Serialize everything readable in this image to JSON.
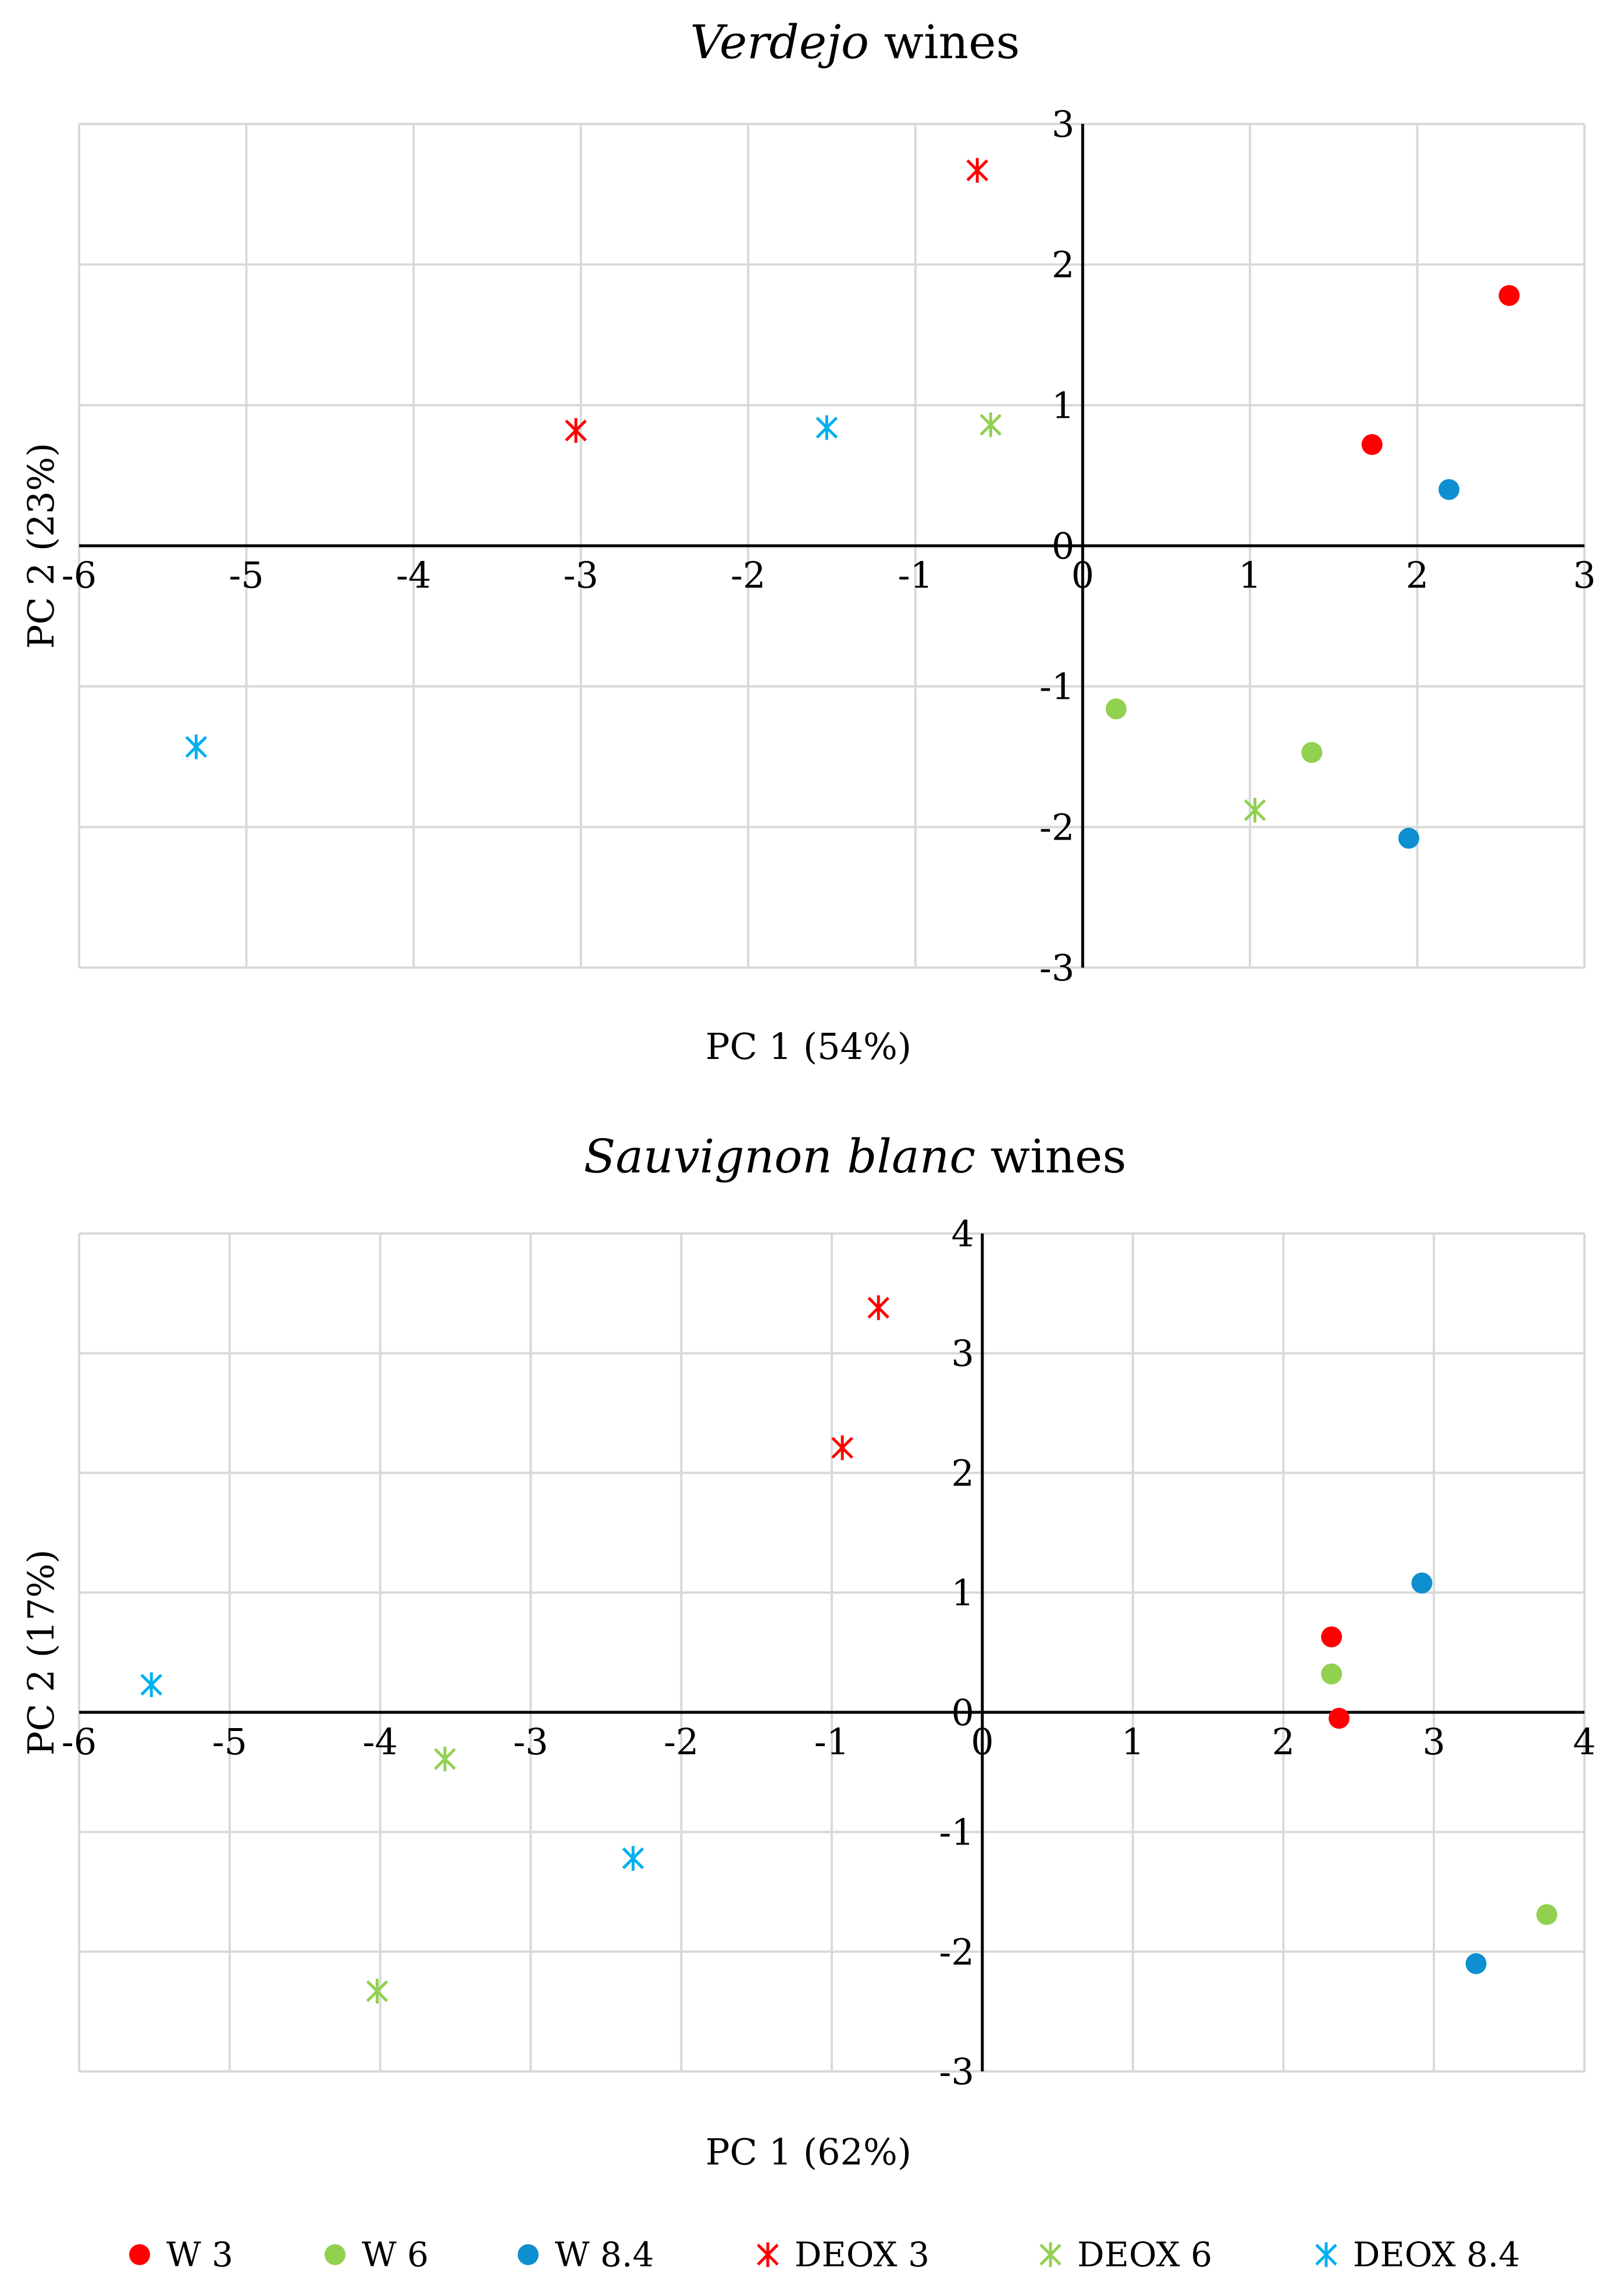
{
  "chart_data": [
    {
      "type": "scatter",
      "title_italic": "Verdejo",
      "title_rest": " wines",
      "xlabel": "PC 1 (54%)",
      "ylabel": "PC 2 (23%)",
      "xlim": [
        -6,
        3
      ],
      "ylim": [
        -3,
        3
      ],
      "xticks": [
        -6,
        -5,
        -4,
        -3,
        -2,
        -1,
        0,
        1,
        2,
        3
      ],
      "yticks": [
        -3,
        -2,
        -1,
        0,
        1,
        2,
        3
      ],
      "grid": true,
      "series": [
        {
          "name": "W 3",
          "points": [
            [
              2.55,
              1.78
            ],
            [
              1.73,
              0.72
            ]
          ]
        },
        {
          "name": "W 6",
          "points": [
            [
              0.2,
              -1.16
            ],
            [
              1.37,
              -1.47
            ]
          ]
        },
        {
          "name": "W 8.4",
          "points": [
            [
              2.19,
              0.4
            ],
            [
              1.95,
              -2.08
            ]
          ]
        },
        {
          "name": "DEOX 3",
          "points": [
            [
              -0.63,
              2.67
            ],
            [
              -3.03,
              0.82
            ]
          ]
        },
        {
          "name": "DEOX 6",
          "points": [
            [
              -0.55,
              0.86
            ],
            [
              1.03,
              -1.88
            ]
          ]
        },
        {
          "name": "DEOX 8.4",
          "points": [
            [
              -1.53,
              0.84
            ],
            [
              -5.3,
              -1.43
            ]
          ]
        }
      ]
    },
    {
      "type": "scatter",
      "title_italic": "Sauvignon blanc",
      "title_rest": " wines",
      "xlabel": "PC 1 (62%)",
      "ylabel": "PC 2 (17%)",
      "xlim": [
        -6,
        4
      ],
      "ylim": [
        -3,
        4
      ],
      "xticks": [
        -6,
        -5,
        -4,
        -3,
        -2,
        -1,
        0,
        1,
        2,
        3,
        4
      ],
      "yticks": [
        -3,
        -2,
        -1,
        0,
        1,
        2,
        3,
        4
      ],
      "grid": true,
      "series": [
        {
          "name": "W 3",
          "points": [
            [
              2.32,
              0.63
            ],
            [
              2.37,
              -0.05
            ]
          ]
        },
        {
          "name": "W 6",
          "points": [
            [
              2.32,
              0.32
            ],
            [
              3.75,
              -1.69
            ]
          ]
        },
        {
          "name": "W 8.4",
          "points": [
            [
              2.92,
              1.08
            ],
            [
              3.28,
              -2.1
            ]
          ]
        },
        {
          "name": "DEOX 3",
          "points": [
            [
              -0.69,
              3.38
            ],
            [
              -0.93,
              2.21
            ]
          ]
        },
        {
          "name": "DEOX 6",
          "points": [
            [
              -3.57,
              -0.39
            ],
            [
              -4.02,
              -2.33
            ]
          ]
        },
        {
          "name": "DEOX 8.4",
          "points": [
            [
              -5.52,
              0.23
            ],
            [
              -2.32,
              -1.22
            ]
          ]
        }
      ]
    }
  ],
  "legend": [
    {
      "label": "W 3",
      "marker": "circle",
      "color": "#ff0000"
    },
    {
      "label": "W 6",
      "marker": "circle",
      "color": "#92d050"
    },
    {
      "label": "W 8.4",
      "marker": "circle",
      "color": "#0e8fcf"
    },
    {
      "label": "DEOX 3",
      "marker": "star",
      "color": "#ff0000"
    },
    {
      "label": "DEOX 6",
      "marker": "star",
      "color": "#92d050"
    },
    {
      "label": "DEOX 8.4",
      "marker": "star",
      "color": "#00b0f0"
    }
  ]
}
